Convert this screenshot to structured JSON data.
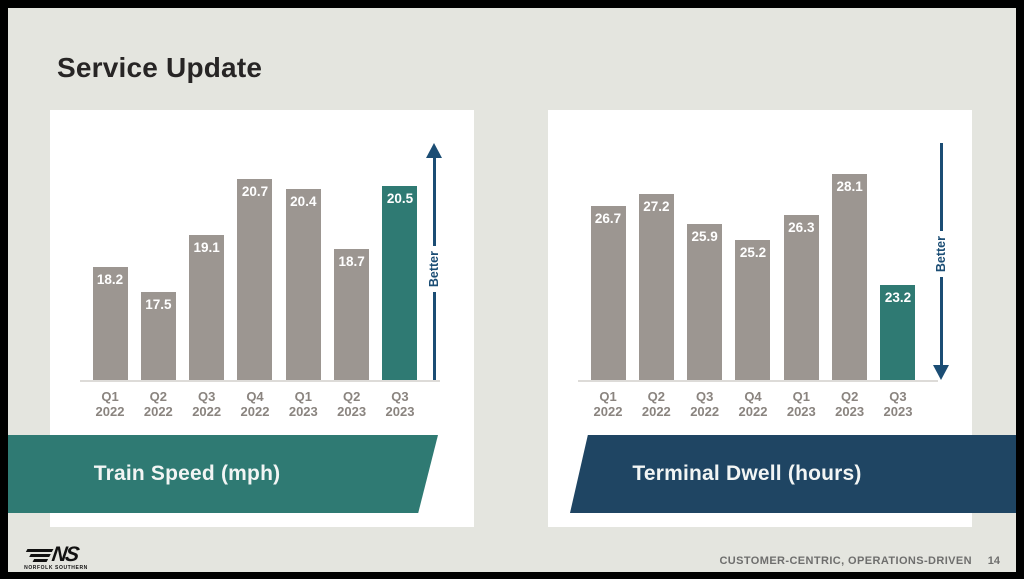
{
  "slide": {
    "title": "Service Update",
    "footer": {
      "tagline": "CUSTOMER-CENTRIC, OPERATIONS-DRIVEN",
      "page_number": "14",
      "logo": {
        "monogram": "NS",
        "wordmark": "NORFOLK SOUTHERN"
      }
    }
  },
  "colors": {
    "background": "#e4e5df",
    "card": "#ffffff",
    "bar_gray": "#9c9691",
    "bar_teal": "#2f7a73",
    "banner_teal": "#2f7a73",
    "banner_navy": "#1f4563",
    "arrow_navy": "#1b4d74",
    "axis_label": "#8a847f",
    "value_label": "#ffffff",
    "footer_text": "#6e6e6d"
  },
  "chart_data": [
    {
      "type": "bar",
      "title": "Train Speed (mph)",
      "categories": [
        "Q1 2022",
        "Q2 2022",
        "Q3 2022",
        "Q4 2022",
        "Q1 2023",
        "Q2 2023",
        "Q3 2023"
      ],
      "values": [
        18.2,
        17.5,
        19.1,
        20.7,
        20.4,
        18.7,
        20.5
      ],
      "value_labels": [
        "18.2",
        "17.5",
        "19.1",
        "20.7",
        "20.4",
        "18.7",
        "20.5"
      ],
      "highlight_index": 6,
      "better_label": "Better",
      "better_direction": "up",
      "ylim": [
        15,
        21.8
      ],
      "grid": false,
      "legend": false
    },
    {
      "type": "bar",
      "title": "Terminal Dwell (hours)",
      "categories": [
        "Q1 2022",
        "Q2 2022",
        "Q3 2022",
        "Q4 2022",
        "Q1 2023",
        "Q2 2023",
        "Q3 2023"
      ],
      "values": [
        26.7,
        27.2,
        25.9,
        25.2,
        26.3,
        28.1,
        23.2
      ],
      "value_labels": [
        "26.7",
        "27.2",
        "25.9",
        "25.2",
        "26.3",
        "28.1",
        "23.2"
      ],
      "highlight_index": 6,
      "better_label": "Better",
      "better_direction": "down",
      "ylim": [
        19,
        29.6
      ],
      "grid": false,
      "legend": false
    }
  ]
}
